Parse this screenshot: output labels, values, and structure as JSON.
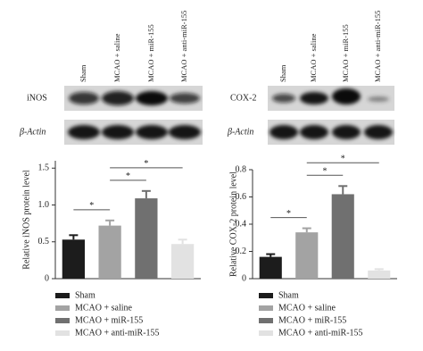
{
  "blots": [
    {
      "rows": [
        "iNOS",
        "β-Actin"
      ]
    },
    {
      "rows": [
        "COX-2",
        "β-Actin"
      ]
    }
  ],
  "chart_data": [
    {
      "type": "bar",
      "y_label": "Relative iNOS protein level",
      "categories": [
        "Sham",
        "MCAO + saline",
        "MCAO + miR-155",
        "MCAO + anti-miR-155"
      ],
      "values": [
        0.53,
        0.72,
        1.09,
        0.47
      ],
      "errors": [
        0.06,
        0.07,
        0.1,
        0.06
      ],
      "colors": [
        "#1c1c1c",
        "#a3a3a3",
        "#707070",
        "#e2e2e2"
      ],
      "ylim": [
        0,
        1.6
      ],
      "yticks": [
        0,
        0.5,
        {
          "value": 1,
          "label": "1.0"
        },
        1.5
      ],
      "significance": [
        {
          "from": "Sham",
          "to": "MCAO + saline",
          "label": "*"
        },
        {
          "from": "MCAO + saline",
          "to": "MCAO + miR-155",
          "label": "*"
        },
        {
          "from": "MCAO + saline",
          "to": "MCAO + anti-miR-155",
          "label": "*"
        }
      ]
    },
    {
      "type": "bar",
      "y_label": "Relative COX-2 protein level",
      "categories": [
        "Sham",
        "MCAO + saline",
        "MCAO + miR-155",
        "MCAO + anti-miR-155"
      ],
      "values": [
        0.16,
        0.34,
        0.62,
        0.06
      ],
      "errors": [
        0.02,
        0.03,
        0.06,
        0.01
      ],
      "colors": [
        "#1c1c1c",
        "#a3a3a3",
        "#707070",
        "#e2e2e2"
      ],
      "ylim": [
        0,
        0.8
      ],
      "yticks": [
        0,
        0.2,
        0.4,
        0.6,
        0.8
      ],
      "significance": [
        {
          "from": "Sham",
          "to": "MCAO + saline",
          "label": "*"
        },
        {
          "from": "MCAO + saline",
          "to": "MCAO + miR-155",
          "label": "*"
        },
        {
          "from": "MCAO + saline",
          "to": "MCAO + anti-miR-155",
          "label": "*"
        }
      ]
    }
  ]
}
